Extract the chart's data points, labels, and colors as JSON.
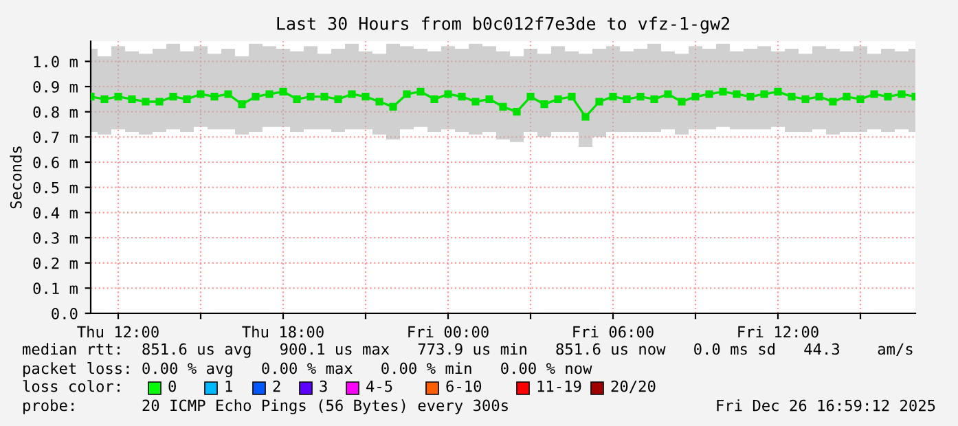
{
  "chart_data": {
    "type": "line",
    "title": "Last 30 Hours from b0c012f7e3de to vfz-1-gw2",
    "ylabel": "Seconds",
    "x": [
      "2025-12-25T11:00",
      "2025-12-25T11:30",
      "2025-12-25T12:00",
      "2025-12-25T12:30",
      "2025-12-25T13:00",
      "2025-12-25T13:30",
      "2025-12-25T14:00",
      "2025-12-25T14:30",
      "2025-12-25T15:00",
      "2025-12-25T15:30",
      "2025-12-25T16:00",
      "2025-12-25T16:30",
      "2025-12-25T17:00",
      "2025-12-25T17:30",
      "2025-12-25T18:00",
      "2025-12-25T18:30",
      "2025-12-25T19:00",
      "2025-12-25T19:30",
      "2025-12-25T20:00",
      "2025-12-25T20:30",
      "2025-12-25T21:00",
      "2025-12-25T21:30",
      "2025-12-25T22:00",
      "2025-12-25T22:30",
      "2025-12-25T23:00",
      "2025-12-25T23:30",
      "2025-12-26T00:00",
      "2025-12-26T00:30",
      "2025-12-26T01:00",
      "2025-12-26T01:30",
      "2025-12-26T02:00",
      "2025-12-26T02:30",
      "2025-12-26T03:00",
      "2025-12-26T03:30",
      "2025-12-26T04:00",
      "2025-12-26T04:30",
      "2025-12-26T05:00",
      "2025-12-26T05:30",
      "2025-12-26T06:00",
      "2025-12-26T06:30",
      "2025-12-26T07:00",
      "2025-12-26T07:30",
      "2025-12-26T08:00",
      "2025-12-26T08:30",
      "2025-12-26T09:00",
      "2025-12-26T09:30",
      "2025-12-26T10:00",
      "2025-12-26T10:30",
      "2025-12-26T11:00",
      "2025-12-26T11:30",
      "2025-12-26T12:00",
      "2025-12-26T12:30",
      "2025-12-26T13:00",
      "2025-12-26T13:30",
      "2025-12-26T14:00",
      "2025-12-26T14:30",
      "2025-12-26T15:00",
      "2025-12-26T15:30",
      "2025-12-26T16:00",
      "2025-12-26T16:30",
      "2025-12-26T17:00"
    ],
    "series": [
      {
        "color": "#00e000",
        "values": [
          0.86,
          0.85,
          0.86,
          0.85,
          0.84,
          0.84,
          0.86,
          0.85,
          0.87,
          0.86,
          0.87,
          0.83,
          0.86,
          0.87,
          0.88,
          0.85,
          0.86,
          0.86,
          0.85,
          0.87,
          0.86,
          0.84,
          0.82,
          0.87,
          0.88,
          0.85,
          0.87,
          0.86,
          0.84,
          0.85,
          0.82,
          0.8,
          0.86,
          0.83,
          0.85,
          0.86,
          0.78,
          0.84,
          0.86,
          0.85,
          0.86,
          0.85,
          0.87,
          0.84,
          0.86,
          0.87,
          0.88,
          0.87,
          0.86,
          0.87,
          0.88,
          0.86,
          0.85,
          0.86,
          0.84,
          0.86,
          0.85,
          0.87,
          0.86,
          0.87,
          0.86
        ],
        "lower": [
          0.72,
          0.71,
          0.73,
          0.72,
          0.71,
          0.72,
          0.73,
          0.72,
          0.74,
          0.73,
          0.73,
          0.71,
          0.72,
          0.74,
          0.74,
          0.72,
          0.73,
          0.73,
          0.72,
          0.73,
          0.73,
          0.71,
          0.69,
          0.73,
          0.74,
          0.72,
          0.73,
          0.72,
          0.71,
          0.72,
          0.69,
          0.68,
          0.72,
          0.7,
          0.72,
          0.72,
          0.66,
          0.7,
          0.72,
          0.72,
          0.72,
          0.72,
          0.73,
          0.71,
          0.73,
          0.73,
          0.74,
          0.73,
          0.73,
          0.73,
          0.74,
          0.72,
          0.72,
          0.73,
          0.71,
          0.72,
          0.72,
          0.73,
          0.72,
          0.73,
          0.72
        ],
        "upper": [
          1.05,
          1.02,
          1.06,
          1.04,
          1.03,
          1.05,
          1.07,
          1.04,
          1.06,
          1.03,
          1.05,
          1.02,
          1.07,
          1.06,
          1.05,
          1.04,
          1.06,
          1.03,
          1.05,
          1.07,
          1.04,
          1.03,
          1.07,
          1.06,
          1.05,
          1.04,
          1.06,
          1.05,
          1.07,
          1.06,
          1.04,
          1.02,
          1.05,
          1.03,
          1.06,
          1.04,
          1.03,
          1.05,
          1.06,
          1.04,
          1.05,
          1.07,
          1.04,
          1.03,
          1.06,
          1.05,
          1.07,
          1.04,
          1.05,
          1.06,
          1.04,
          1.05,
          1.03,
          1.06,
          1.05,
          1.04,
          1.06,
          1.03,
          1.05,
          1.04,
          1.05
        ]
      }
    ],
    "xlim": [
      "2025-12-25T11:00",
      "2025-12-26T17:00"
    ],
    "xticks": [
      {
        "value": "2025-12-25T12:00",
        "label": "Thu 12:00"
      },
      {
        "value": "2025-12-25T15:00",
        "label": null
      },
      {
        "value": "2025-12-25T18:00",
        "label": "Thu 18:00"
      },
      {
        "value": "2025-12-25T21:00",
        "label": null
      },
      {
        "value": "2025-12-26T00:00",
        "label": "Fri 00:00"
      },
      {
        "value": "2025-12-26T03:00",
        "label": null
      },
      {
        "value": "2025-12-26T06:00",
        "label": "Fri 06:00"
      },
      {
        "value": "2025-12-26T09:00",
        "label": null
      },
      {
        "value": "2025-12-26T12:00",
        "label": "Fri 12:00"
      },
      {
        "value": "2025-12-26T15:00",
        "label": null
      }
    ],
    "ylim": [
      0,
      1.08
    ],
    "yticks": [
      {
        "value": 0,
        "label": "0.0"
      },
      {
        "value": 0.1,
        "label": "0.1 m"
      },
      {
        "value": 0.2,
        "label": "0.2 m"
      },
      {
        "value": 0.3,
        "label": "0.3 m"
      },
      {
        "value": 0.4,
        "label": "0.4 m"
      },
      {
        "value": 0.5,
        "label": "0.5 m"
      },
      {
        "value": 0.6,
        "label": "0.6 m"
      },
      {
        "value": 0.7,
        "label": "0.7 m"
      },
      {
        "value": 0.8,
        "label": "0.8 m"
      },
      {
        "value": 0.9,
        "label": "0.9 m"
      },
      {
        "value": 1.0,
        "label": "1.0 m"
      }
    ],
    "grid": true,
    "marker": "square",
    "legend": false,
    "annotations": [
      "median rtt:  851.6 us avg   900.1 us max   773.9 us min   851.6 us now   0.0 ms sd   44.3    am/s",
      "packet loss: 0.00 % avg   0.00 % max   0.00 % min   0.00 % now",
      "loss color:",
      "0",
      "1",
      "2",
      "3",
      "4-5",
      "6-10",
      "11-19",
      "20/20",
      "probe:       20 ICMP Echo Pings (56 Bytes) every 300s",
      "Fri Dec 26 16:59:12 2025"
    ]
  }
}
